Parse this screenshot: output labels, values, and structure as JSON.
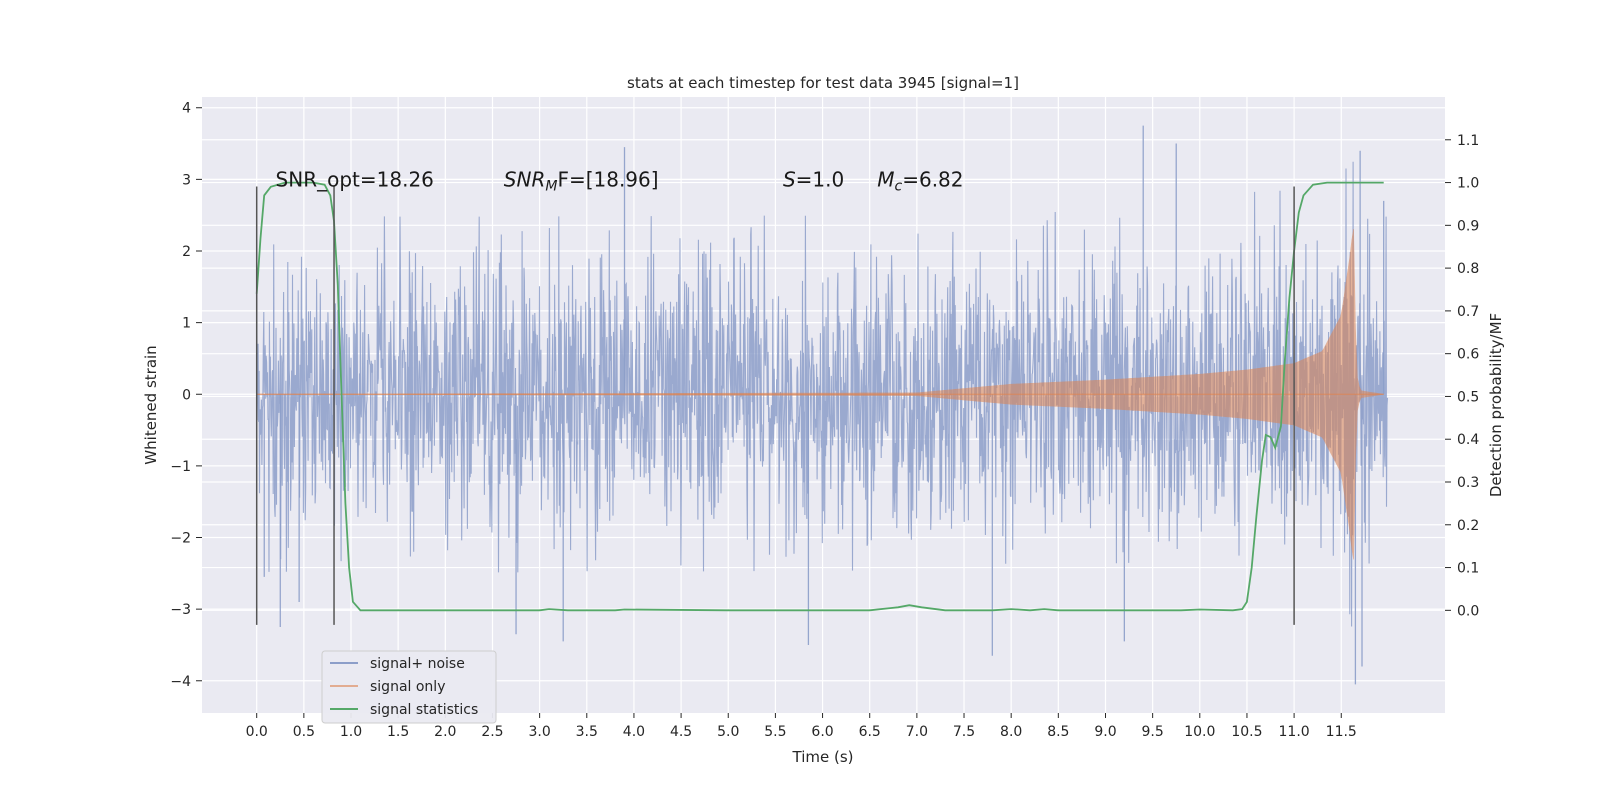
{
  "chart_data": {
    "type": "line",
    "title": "stats at each timestep for test data 3945 [signal=1]",
    "xlabel": "Time (s)",
    "ylabel": "Whitened strain",
    "y2label": "Detection probability/MF",
    "xlim": [
      -0.58,
      12.6
    ],
    "ylim": [
      -4.45,
      4.15
    ],
    "y2lim": [
      -0.24,
      1.2
    ],
    "x_ticks": [
      0.0,
      0.5,
      1.0,
      1.5,
      2.0,
      2.5,
      3.0,
      3.5,
      4.0,
      4.5,
      5.0,
      5.5,
      6.0,
      6.5,
      7.0,
      7.5,
      8.0,
      8.5,
      9.0,
      9.5,
      10.0,
      10.5,
      11.0,
      11.5
    ],
    "x_tick_labels": [
      "0.0",
      "0.5",
      "1.0",
      "1.5",
      "2.0",
      "2.5",
      "3.0",
      "3.5",
      "4.0",
      "4.5",
      "5.0",
      "5.5",
      "6.0",
      "6.5",
      "7.0",
      "7.5",
      "8.0",
      "8.5",
      "9.0",
      "9.5",
      "10.0",
      "10.5",
      "11.0",
      "11.5"
    ],
    "y_ticks": [
      4,
      3,
      2,
      1,
      0,
      -1,
      -2,
      -3,
      -4
    ],
    "y_tick_labels": [
      "4",
      "3",
      "2",
      "1",
      "0",
      "−1",
      "−2",
      "−3",
      "−4"
    ],
    "y2_ticks": [
      1.1,
      1.0,
      0.9,
      0.8,
      0.7,
      0.6,
      0.5,
      0.4,
      0.3,
      0.2,
      0.1,
      0.0
    ],
    "y2_tick_labels": [
      "1.1",
      "1.0",
      "0.9",
      "0.8",
      "0.7",
      "0.6",
      "0.5",
      "0.4",
      "0.3",
      "0.2",
      "0.1",
      "0.0"
    ],
    "grid": true,
    "legend_placement": "lower-left",
    "annotations": [
      {
        "label": "SNR_opt=18.26",
        "x": 0.2,
        "y": 3.0
      },
      {
        "label": "SNR",
        "sub": "M",
        "tail": "F=[18.96]",
        "x": 2.62,
        "y": 3.0,
        "italic_head": true
      },
      {
        "label": "S",
        "tail": "=1.0",
        "x": 5.58,
        "y": 3.0,
        "italic_head": true
      },
      {
        "label": "M",
        "sub": "c",
        "tail": "=6.82",
        "x": 6.58,
        "y": 3.0,
        "italic_head": true
      }
    ],
    "vlines": [
      {
        "x": 0.0,
        "ymin": -3.22,
        "ymax": 2.9
      },
      {
        "x": 0.82,
        "ymin": -3.22,
        "ymax": 2.9
      },
      {
        "x": 11.0,
        "ymin": -3.22,
        "ymax": 2.9
      }
    ],
    "series": [
      {
        "name": "signal+ noise",
        "color": "#8c9ec9",
        "axis": "left",
        "kind": "noise",
        "t_range": [
          0.0,
          11.99
        ],
        "typical_amplitude": 1.6,
        "peak_points": [
          [
            0.08,
            -2.55
          ],
          [
            0.25,
            -3.25
          ],
          [
            0.45,
            -2.9
          ],
          [
            2.75,
            -3.35
          ],
          [
            3.25,
            -3.45
          ],
          [
            3.9,
            3.45
          ],
          [
            5.85,
            -3.5
          ],
          [
            7.8,
            -3.65
          ],
          [
            9.2,
            -3.45
          ],
          [
            9.4,
            3.75
          ],
          [
            9.75,
            3.5
          ],
          [
            11.65,
            -4.05
          ],
          [
            11.7,
            3.4
          ],
          [
            11.72,
            -3.8
          ],
          [
            11.95,
            2.7
          ]
        ]
      },
      {
        "name": "signal only",
        "color": "#dd8452",
        "axis": "left",
        "kind": "chirp",
        "envelope": [
          [
            0.0,
            0.0
          ],
          [
            7.0,
            0.02
          ],
          [
            7.5,
            0.08
          ],
          [
            8.0,
            0.14
          ],
          [
            9.0,
            0.2
          ],
          [
            10.0,
            0.28
          ],
          [
            10.5,
            0.34
          ],
          [
            11.0,
            0.43
          ],
          [
            11.3,
            0.6
          ],
          [
            11.5,
            1.1
          ],
          [
            11.6,
            2.0
          ],
          [
            11.63,
            2.4
          ],
          [
            11.66,
            0.3
          ],
          [
            11.7,
            0.05
          ],
          [
            11.95,
            0.0
          ]
        ]
      },
      {
        "name": "signal statistics",
        "color": "#55a868",
        "axis": "right",
        "kind": "line",
        "points": [
          [
            0.0,
            0.74
          ],
          [
            0.04,
            0.87
          ],
          [
            0.08,
            0.97
          ],
          [
            0.15,
            0.99
          ],
          [
            0.3,
            1.0
          ],
          [
            0.6,
            1.0
          ],
          [
            0.72,
            0.995
          ],
          [
            0.78,
            0.97
          ],
          [
            0.82,
            0.91
          ],
          [
            0.86,
            0.76
          ],
          [
            0.9,
            0.5
          ],
          [
            0.94,
            0.25
          ],
          [
            0.98,
            0.1
          ],
          [
            1.02,
            0.02
          ],
          [
            1.1,
            0.0
          ],
          [
            2.5,
            0.0
          ],
          [
            3.0,
            0.0
          ],
          [
            3.1,
            0.003
          ],
          [
            3.3,
            0.0
          ],
          [
            3.8,
            0.0
          ],
          [
            3.9,
            0.002
          ],
          [
            5.0,
            0.0
          ],
          [
            6.5,
            0.0
          ],
          [
            6.8,
            0.007
          ],
          [
            6.92,
            0.012
          ],
          [
            7.05,
            0.007
          ],
          [
            7.3,
            0.0
          ],
          [
            7.8,
            0.0
          ],
          [
            8.0,
            0.003
          ],
          [
            8.2,
            0.0
          ],
          [
            8.35,
            0.003
          ],
          [
            8.5,
            0.0
          ],
          [
            9.8,
            0.0
          ],
          [
            10.0,
            0.002
          ],
          [
            10.35,
            0.0
          ],
          [
            10.45,
            0.003
          ],
          [
            10.5,
            0.02
          ],
          [
            10.55,
            0.1
          ],
          [
            10.6,
            0.22
          ],
          [
            10.66,
            0.35
          ],
          [
            10.7,
            0.41
          ],
          [
            10.75,
            0.405
          ],
          [
            10.8,
            0.38
          ],
          [
            10.86,
            0.43
          ],
          [
            10.9,
            0.58
          ],
          [
            10.95,
            0.73
          ],
          [
            11.0,
            0.84
          ],
          [
            11.05,
            0.93
          ],
          [
            11.1,
            0.97
          ],
          [
            11.2,
            0.995
          ],
          [
            11.35,
            1.0
          ],
          [
            11.6,
            1.0
          ],
          [
            11.95,
            1.0
          ]
        ]
      }
    ]
  }
}
